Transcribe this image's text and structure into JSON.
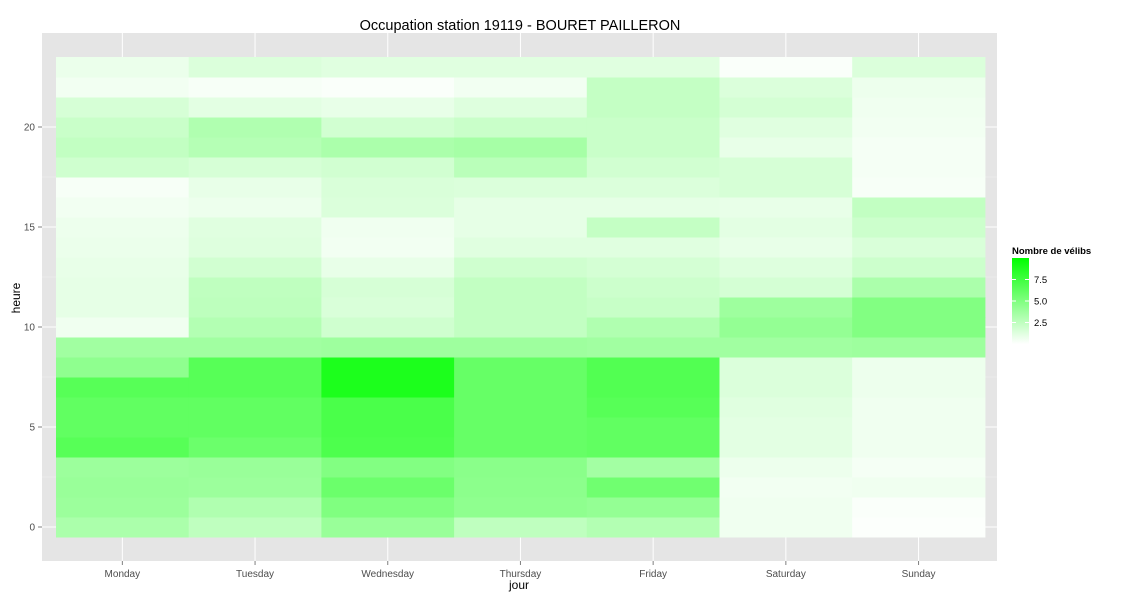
{
  "chart_data": {
    "type": "heatmap",
    "title": "Occupation station 19119 - BOURET PAILLERON",
    "xlabel": "jour",
    "ylabel": "heure",
    "days": [
      "Monday",
      "Tuesday",
      "Wednesday",
      "Thursday",
      "Friday",
      "Saturday",
      "Sunday"
    ],
    "hours": [
      0,
      1,
      2,
      3,
      4,
      5,
      6,
      7,
      8,
      9,
      10,
      11,
      12,
      13,
      14,
      15,
      16,
      17,
      18,
      19,
      20,
      21,
      22,
      23
    ],
    "y_ticks": [
      0,
      5,
      10,
      15,
      20
    ],
    "ylim": [
      -0.5,
      23.5
    ],
    "color_min": "#ffffff",
    "color_max": "#00ff00",
    "value_range": [
      0,
      10
    ],
    "grid": true,
    "legend": {
      "title": "Nombre de vélibs",
      "placement": "right",
      "ticks": [
        "2.5",
        "5.0",
        "7.5"
      ]
    },
    "values": [
      [
        3.3,
        2.5,
        4.0,
        2.5,
        3.0,
        0.6,
        0.1
      ],
      [
        3.9,
        3.1,
        5.0,
        4.4,
        4.2,
        0.6,
        0.2
      ],
      [
        4.0,
        3.9,
        5.8,
        4.5,
        5.6,
        0.5,
        0.6
      ],
      [
        3.9,
        4.0,
        4.9,
        4.6,
        3.6,
        0.7,
        0.4
      ],
      [
        6.6,
        5.8,
        7.0,
        6.0,
        6.2,
        1.1,
        0.6
      ],
      [
        6.2,
        6.2,
        7.1,
        6.0,
        6.2,
        1.1,
        0.6
      ],
      [
        6.2,
        6.2,
        7.1,
        6.0,
        6.6,
        1.2,
        0.6
      ],
      [
        6.6,
        6.6,
        8.9,
        6.0,
        6.8,
        1.4,
        0.7
      ],
      [
        4.4,
        6.6,
        8.9,
        6.0,
        6.8,
        1.4,
        0.7
      ],
      [
        3.7,
        3.7,
        3.8,
        3.8,
        3.7,
        3.7,
        3.8
      ],
      [
        0.6,
        3.0,
        1.9,
        2.4,
        3.1,
        4.2,
        4.9
      ],
      [
        1.0,
        2.6,
        1.5,
        2.4,
        2.2,
        3.8,
        4.9
      ],
      [
        1.0,
        2.5,
        1.6,
        2.4,
        2.0,
        1.7,
        3.3
      ],
      [
        0.9,
        1.8,
        0.9,
        1.9,
        1.7,
        1.3,
        2.0
      ],
      [
        0.8,
        1.3,
        0.5,
        1.2,
        1.2,
        0.9,
        1.5
      ],
      [
        0.7,
        1.2,
        0.6,
        1.0,
        2.3,
        1.1,
        2.0
      ],
      [
        0.5,
        0.7,
        1.4,
        1.0,
        1.0,
        0.9,
        2.4
      ],
      [
        0.3,
        0.9,
        1.5,
        1.4,
        1.4,
        1.6,
        0.3
      ],
      [
        1.9,
        1.6,
        1.8,
        2.7,
        1.8,
        1.6,
        0.4
      ],
      [
        2.4,
        2.9,
        3.3,
        3.5,
        2.1,
        0.9,
        0.4
      ],
      [
        2.1,
        3.1,
        1.8,
        2.1,
        2.1,
        1.2,
        0.5
      ],
      [
        1.6,
        1.1,
        0.9,
        1.3,
        2.3,
        1.7,
        0.6
      ],
      [
        0.5,
        0.3,
        0.2,
        0.5,
        2.3,
        1.4,
        0.7
      ],
      [
        0.8,
        1.4,
        1.2,
        1.2,
        1.2,
        0.2,
        1.4
      ]
    ]
  }
}
